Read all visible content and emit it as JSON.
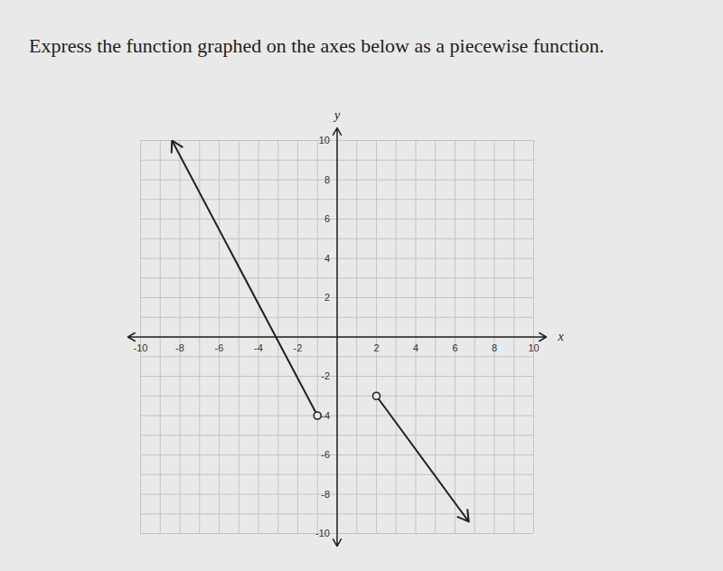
{
  "chart_data": {
    "type": "line",
    "title": "Express the function graphed on the axes below as a piecewise function.",
    "xlabel": "x",
    "ylabel": "y",
    "xlim": [
      -10,
      10
    ],
    "ylim": [
      -10,
      10
    ],
    "xticks": [
      -10,
      -8,
      -6,
      -4,
      -2,
      2,
      4,
      6,
      8,
      10
    ],
    "yticks": [
      -10,
      -8,
      -6,
      -4,
      -2,
      2,
      4,
      6,
      8,
      10
    ],
    "grid": true,
    "series": [
      {
        "x": [
          -1,
          -8.4
        ],
        "values": [
          -4,
          10
        ],
        "color": "#222222",
        "marker": "open_circle"
      },
      {
        "x": [
          2,
          6.7
        ],
        "values": [
          -3,
          -9.4
        ],
        "color": "#222222",
        "marker": "open_circle"
      }
    ]
  }
}
